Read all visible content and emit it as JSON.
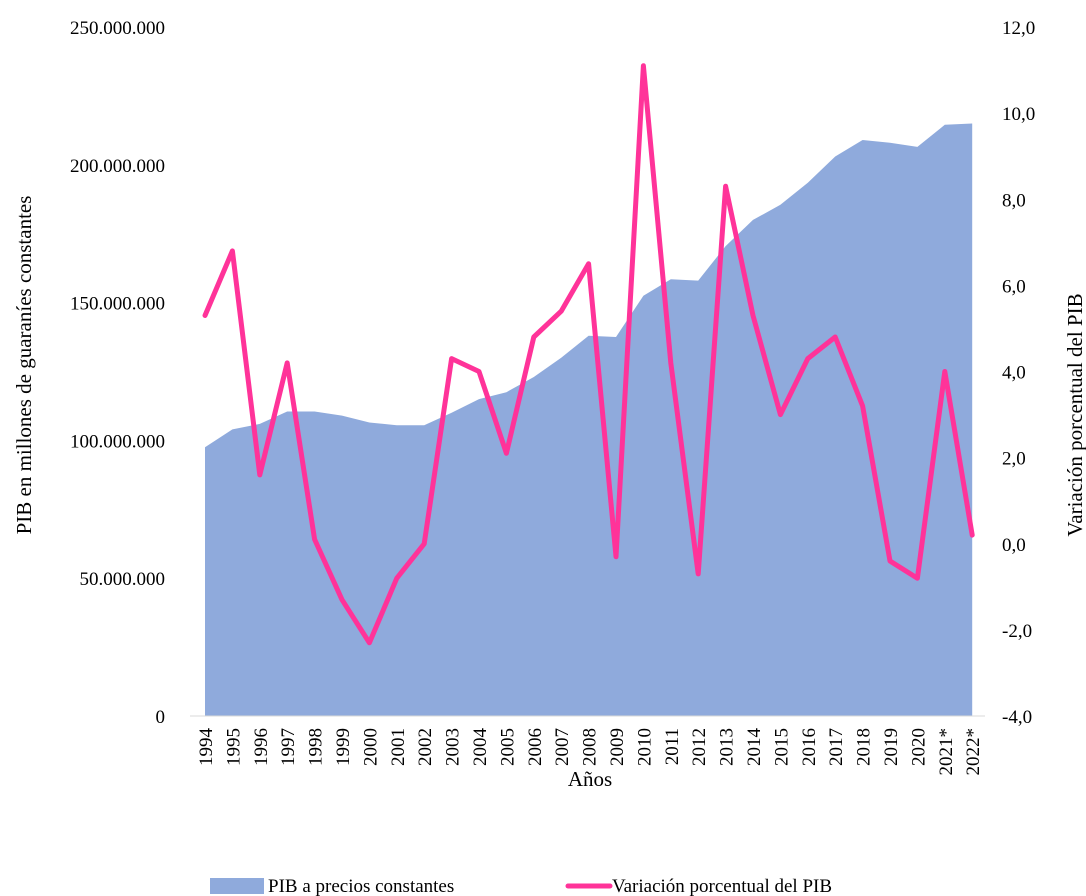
{
  "chart_data": {
    "type": "area",
    "categories": [
      "1994",
      "1995",
      "1996",
      "1997",
      "1998",
      "1999",
      "2000",
      "2001",
      "2002",
      "2003",
      "2004",
      "2005",
      "2006",
      "2007",
      "2008",
      "2009",
      "2010",
      "2011",
      "2012",
      "2013",
      "2014",
      "2015",
      "2016",
      "2017",
      "2018",
      "2019",
      "2020",
      "2021*",
      "2022*"
    ],
    "series": [
      {
        "name": "PIB a precios constantes",
        "type": "area",
        "axis": "left",
        "color": "#8faadc",
        "values": [
          97500000,
          104000000,
          106000000,
          110500000,
          110500000,
          109000000,
          106500000,
          105500000,
          105500000,
          110000000,
          115000000,
          117500000,
          123000000,
          130000000,
          138000000,
          137500000,
          152500000,
          158500000,
          158000000,
          170500000,
          180000000,
          185500000,
          193500000,
          203000000,
          209000000,
          208000000,
          206500000,
          214500000,
          215000000
        ]
      },
      {
        "name": "Variación porcentual del PIB",
        "type": "line",
        "axis": "right",
        "color": "#ff3399",
        "values": [
          5.3,
          6.8,
          1.6,
          4.2,
          0.1,
          -1.3,
          -2.3,
          -0.8,
          0.0,
          4.3,
          4.0,
          2.1,
          4.8,
          5.4,
          6.5,
          -0.3,
          11.1,
          4.2,
          -0.7,
          8.3,
          5.3,
          3.0,
          4.3,
          4.8,
          3.2,
          -0.4,
          -0.8,
          4.0,
          0.2
        ]
      }
    ],
    "y_left": {
      "label": "PIB en millones de guaraníes constantes",
      "range": [
        0,
        250000000
      ],
      "ticks": [
        "0",
        "50.000.000",
        "100.000.000",
        "150.000.000",
        "200.000.000",
        "250.000.000"
      ]
    },
    "y_right": {
      "label": "Variación porcentual del PIB",
      "range": [
        -4,
        12
      ],
      "ticks": [
        "-4,0",
        "-2,0",
        "0,0",
        "2,0",
        "4,0",
        "6,0",
        "8,0",
        "10,0",
        "12,0"
      ]
    },
    "xlabel": "Años",
    "grid": false,
    "legend": {
      "position": "bottom",
      "entries": [
        "PIB a precios constantes",
        "Variación porcentual del PIB"
      ]
    }
  }
}
